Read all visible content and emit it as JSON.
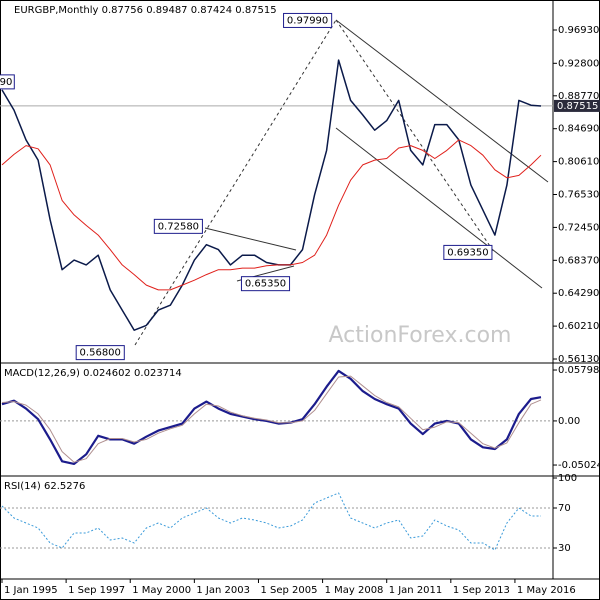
{
  "chart_data": {
    "type": "line",
    "xlim": [
      "1994-12-01",
      "2017-12-01"
    ],
    "x": [
      "1995-01-01",
      "1995-07-01",
      "1996-01-01",
      "1996-07-01",
      "1997-01-01",
      "1997-07-01",
      "1998-01-01",
      "1998-07-01",
      "1999-01-01",
      "1999-07-01",
      "2000-01-01",
      "2000-07-01",
      "2001-01-01",
      "2001-07-01",
      "2002-01-01",
      "2002-07-01",
      "2003-01-01",
      "2003-07-01",
      "2004-01-01",
      "2004-07-01",
      "2005-01-01",
      "2005-07-01",
      "2006-01-01",
      "2006-07-01",
      "2007-01-01",
      "2007-07-01",
      "2008-01-01",
      "2008-07-01",
      "2009-01-01",
      "2009-07-01",
      "2010-01-01",
      "2010-07-01",
      "2011-01-01",
      "2011-07-01",
      "2012-01-01",
      "2012-07-01",
      "2013-01-01",
      "2013-07-01",
      "2014-01-01",
      "2014-07-01",
      "2015-01-01",
      "2015-07-01",
      "2016-01-01",
      "2016-07-01",
      "2017-01-01",
      "2017-06-01"
    ],
    "xticks": [
      {
        "value": "1995-01-01",
        "label": "1 Jan 1995"
      },
      {
        "value": "1997-09-01",
        "label": "1 Sep 1997"
      },
      {
        "value": "2000-05-01",
        "label": "1 May 2000"
      },
      {
        "value": "2003-01-01",
        "label": "1 Jan 2003"
      },
      {
        "value": "2005-09-01",
        "label": "1 Sep 2005"
      },
      {
        "value": "2008-05-01",
        "label": "1 May 2008"
      },
      {
        "value": "2011-01-01",
        "label": "1 Jan 2011"
      },
      {
        "value": "2013-09-01",
        "label": "1 Sep 2013"
      },
      {
        "value": "2016-05-01",
        "label": "1 May 2016"
      }
    ],
    "panels": [
      {
        "title": "EURGBP,Monthly",
        "header_values": [
          0.87756,
          0.89487,
          0.87424,
          0.87515
        ],
        "ylim": [
          0.5576,
          1.0003
        ],
        "yticks": [
          {
            "value": 0.9693,
            "label": "0.96930"
          },
          {
            "value": 0.928,
            "label": "0.92800"
          },
          {
            "value": 0.8877,
            "label": "0.88770"
          },
          {
            "value": 0.8469,
            "label": "0.84690"
          },
          {
            "value": 0.8061,
            "label": "0.80610"
          },
          {
            "value": 0.7653,
            "label": "0.76530"
          },
          {
            "value": 0.7245,
            "label": "0.72450"
          },
          {
            "value": 0.6837,
            "label": "0.68370"
          },
          {
            "value": 0.6429,
            "label": "0.64290"
          },
          {
            "value": 0.6021,
            "label": "0.60210"
          },
          {
            "value": 0.5613,
            "label": "0.56130"
          }
        ],
        "watermark": "ActionForex.com",
        "series": [
          {
            "color": "#0b1a4a",
            "width": 1.5,
            "values": [
              0.895,
              0.87,
              0.833,
              0.808,
              0.734,
              0.672,
              0.684,
              0.678,
              0.69,
              0.647,
              0.622,
              0.597,
              0.603,
              0.622,
              0.628,
              0.653,
              0.684,
              0.703,
              0.697,
              0.678,
              0.69,
              0.69,
              0.681,
              0.678,
              0.678,
              0.697,
              0.765,
              0.82,
              0.932,
              0.882,
              0.864,
              0.845,
              0.857,
              0.882,
              0.82,
              0.802,
              0.852,
              0.852,
              0.833,
              0.777,
              0.746,
              0.715,
              0.777,
              0.882,
              0.876,
              0.875
            ]
          },
          {
            "color": "#e0201b",
            "width": 1,
            "values": [
              0.802,
              0.815,
              0.826,
              0.822,
              0.802,
              0.758,
              0.74,
              0.727,
              0.715,
              0.697,
              0.678,
              0.666,
              0.653,
              0.647,
              0.647,
              0.653,
              0.659,
              0.666,
              0.672,
              0.672,
              0.674,
              0.674,
              0.677,
              0.678,
              0.678,
              0.681,
              0.69,
              0.715,
              0.752,
              0.783,
              0.802,
              0.808,
              0.81,
              0.823,
              0.826,
              0.82,
              0.81,
              0.82,
              0.833,
              0.826,
              0.814,
              0.796,
              0.786,
              0.789,
              0.802,
              0.814
            ]
          }
        ],
        "annotations": [
          {
            "label": "0.97990",
            "x": "2008-12-01",
            "y": 0.9799
          },
          {
            "label": "0.72580",
            "x": "2003-06-01",
            "y": 0.7258
          },
          {
            "label": "0.65350",
            "x": "2006-06-01",
            "y": 0.6535
          },
          {
            "label": "0.56800",
            "x": "2000-05-01",
            "y": 0.568
          },
          {
            "label": "0.69350",
            "x": "2015-07-01",
            "y": 0.6935
          },
          {
            "label": "90",
            "x": "1994-12-01",
            "y": 0.9
          }
        ]
      },
      {
        "title": "MACD(12,26,9)",
        "header_values": [
          0.024602,
          0.023714
        ],
        "ylim": [
          -0.0616,
          0.0637
        ],
        "yticks": [
          0.057984,
          {
            "value": 0,
            "label": "0.00"
          },
          -0.050241
        ],
        "levels": [
          0
        ],
        "series": [
          {
            "color": "#1c1c8c",
            "width": 2.2,
            "values": [
              0.019,
              0.023,
              0.014,
              0.002,
              -0.021,
              -0.046,
              -0.049,
              -0.038,
              -0.017,
              -0.021,
              -0.021,
              -0.026,
              -0.018,
              -0.011,
              -0.007,
              -0.003,
              0.014,
              0.022,
              0.014,
              0.008,
              0.005,
              0.002,
              0.0,
              -0.003,
              -0.002,
              0.002,
              0.019,
              0.039,
              0.057,
              0.048,
              0.034,
              0.025,
              0.019,
              0.014,
              -0.003,
              -0.015,
              -0.003,
              0.0,
              -0.003,
              -0.021,
              -0.03,
              -0.032,
              -0.021,
              0.008,
              0.025,
              0.027
            ]
          },
          {
            "color": "#b09090",
            "width": 1,
            "values": [
              0.021,
              0.022,
              0.018,
              0.008,
              -0.01,
              -0.035,
              -0.047,
              -0.043,
              -0.026,
              -0.02,
              -0.02,
              -0.024,
              -0.021,
              -0.014,
              -0.009,
              -0.005,
              0.008,
              0.019,
              0.017,
              0.01,
              0.006,
              0.003,
              0.001,
              -0.002,
              -0.002,
              0.0,
              0.012,
              0.031,
              0.05,
              0.051,
              0.04,
              0.029,
              0.021,
              0.016,
              0.003,
              -0.01,
              -0.007,
              -0.001,
              -0.002,
              -0.014,
              -0.026,
              -0.031,
              -0.025,
              -0.002,
              0.019,
              0.024
            ]
          }
        ]
      },
      {
        "title": "RSI(14)",
        "header_values": [
          62.5276
        ],
        "ylim": [
          0,
          100
        ],
        "yticks": [
          100,
          70,
          30
        ],
        "levels": [
          70,
          30
        ],
        "series": [
          {
            "color": "#3a9ad9",
            "width": 1,
            "dash": true,
            "values": [
              72,
              60,
              55,
              50,
              35,
              30,
              45,
              45,
              50,
              38,
              40,
              35,
              50,
              55,
              50,
              60,
              65,
              70,
              60,
              55,
              60,
              58,
              55,
              50,
              52,
              58,
              75,
              80,
              85,
              60,
              55,
              50,
              55,
              58,
              40,
              42,
              58,
              52,
              48,
              35,
              35,
              28,
              55,
              70,
              62,
              62
            ]
          }
        ]
      }
    ]
  }
}
